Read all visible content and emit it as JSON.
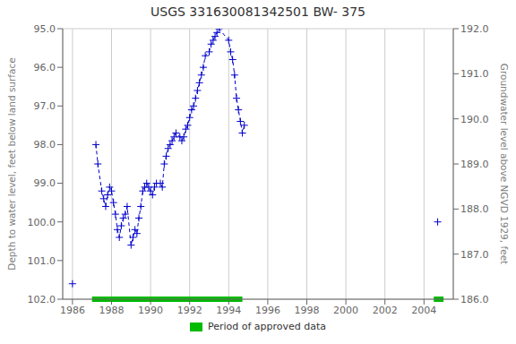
{
  "chart_data": {
    "type": "line",
    "title": "USGS 331630081342501 BW- 375",
    "ylabel": "Depth to water level, feet below land surface",
    "y2label": "Groundwater level above NGVD 1929, feet",
    "xlim": [
      1985.5,
      2005.5
    ],
    "xticks": [
      1986,
      1988,
      1990,
      1992,
      1994,
      1996,
      1998,
      2000,
      2002,
      2004
    ],
    "ylim": [
      102.0,
      95.0
    ],
    "yticks": [
      {
        "value": 95.0,
        "label": "95.0"
      },
      {
        "value": 96.0,
        "label": "96.0"
      },
      {
        "value": 97.0,
        "label": "97.0"
      },
      {
        "value": 98.0,
        "label": "98.0"
      },
      {
        "value": 99.0,
        "label": "99.0"
      },
      {
        "value": 100.0,
        "label": "100.0"
      },
      {
        "value": 101.0,
        "label": "101.0"
      },
      {
        "value": 102.0,
        "label": "102.0"
      }
    ],
    "y2lim": [
      186.0,
      192.0
    ],
    "y2ticks": [
      {
        "value": 186.0,
        "label": "186.0"
      },
      {
        "value": 187.0,
        "label": "187.0"
      },
      {
        "value": 188.0,
        "label": "188.0"
      },
      {
        "value": 189.0,
        "label": "189.0"
      },
      {
        "value": 190.0,
        "label": "190.0"
      },
      {
        "value": 191.0,
        "label": "191.0"
      },
      {
        "value": 192.0,
        "label": "192.0"
      }
    ],
    "grid": true,
    "legend": "bottom",
    "series": [
      {
        "type": "line",
        "color": "#0000cc",
        "marker": "plus",
        "line_style": "dashed",
        "x": [
          1987.2,
          1987.3,
          1987.5,
          1987.6,
          1987.7,
          1987.8,
          1987.9,
          1988.0,
          1988.1,
          1988.2,
          1988.3,
          1988.4,
          1988.5,
          1988.6,
          1988.7,
          1988.8,
          1989.0,
          1989.1,
          1989.2,
          1989.3,
          1989.4,
          1989.5,
          1989.6,
          1989.7,
          1989.8,
          1989.9,
          1990.0,
          1990.1,
          1990.2,
          1990.3,
          1990.5,
          1990.6,
          1990.7,
          1990.8,
          1990.9,
          1991.0,
          1991.1,
          1991.2,
          1991.3,
          1991.5,
          1991.6,
          1991.7,
          1991.8,
          1991.9,
          1992.0,
          1992.1,
          1992.2,
          1992.3,
          1992.4,
          1992.5,
          1992.6,
          1992.7,
          1992.8,
          1993.0,
          1993.1,
          1993.2,
          1993.3,
          1993.4,
          1993.5,
          1994.0,
          1994.1,
          1994.2,
          1994.3,
          1994.4,
          1994.5,
          1994.6,
          1994.7,
          1994.8
        ],
        "values": [
          98.0,
          98.5,
          99.2,
          99.4,
          99.6,
          99.3,
          99.1,
          99.2,
          99.5,
          99.8,
          100.2,
          100.4,
          100.1,
          99.9,
          99.8,
          99.6,
          100.6,
          100.4,
          100.2,
          100.3,
          99.9,
          99.6,
          99.2,
          99.1,
          99.0,
          99.1,
          99.2,
          99.3,
          99.1,
          99.0,
          99.0,
          99.1,
          98.5,
          98.3,
          98.1,
          98.0,
          97.9,
          97.8,
          97.7,
          97.8,
          97.9,
          97.8,
          97.6,
          97.5,
          97.3,
          97.1,
          97.0,
          96.8,
          96.6,
          96.4,
          96.2,
          96.0,
          95.7,
          95.6,
          95.4,
          95.3,
          95.2,
          95.1,
          95.0,
          95.3,
          95.6,
          95.8,
          96.2,
          96.8,
          97.1,
          97.4,
          97.7,
          97.5
        ]
      },
      {
        "type": "scatter",
        "color": "#0000cc",
        "marker": "plus",
        "x": [
          1986.0,
          2004.7
        ],
        "values": [
          101.6,
          100.0
        ]
      }
    ],
    "periods": [
      {
        "name": "Period of approved data",
        "color": "#00bb00",
        "ranges": [
          [
            1987.0,
            1994.7
          ],
          [
            2004.5,
            2005.0
          ]
        ]
      }
    ]
  }
}
